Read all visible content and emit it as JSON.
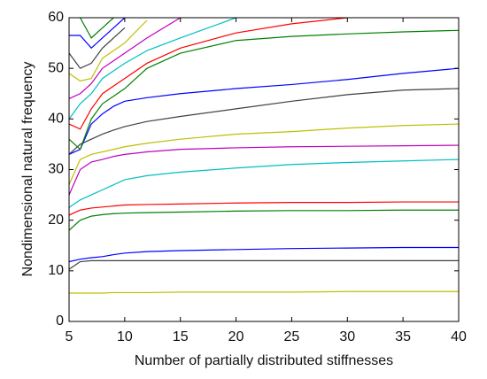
{
  "chart_data": {
    "type": "line",
    "xlabel": "Number of partially distributed stiffnesses",
    "ylabel": "Nondimensional natural frequency",
    "x": [
      5,
      6,
      7,
      8,
      9,
      10,
      12,
      15,
      20,
      25,
      30,
      35,
      40
    ],
    "xlim": [
      5,
      40
    ],
    "xticks": [
      5,
      10,
      15,
      20,
      25,
      30,
      35,
      40
    ],
    "ylim": [
      0,
      60
    ],
    "yticks": [
      0,
      10,
      20,
      30,
      40,
      50,
      60
    ],
    "grid": false,
    "series": [
      {
        "color": "#bfbf00",
        "values": [
          5.6,
          5.6,
          5.6,
          5.6,
          5.7,
          5.7,
          5.7,
          5.8,
          5.8,
          5.8,
          5.9,
          5.9,
          5.9
        ]
      },
      {
        "color": "#404040",
        "values": [
          10.3,
          11.8,
          12,
          12,
          12,
          12,
          12,
          12,
          12,
          12,
          12,
          12,
          12
        ]
      },
      {
        "color": "#0000ff",
        "values": [
          11.8,
          12.3,
          12.6,
          12.8,
          13.2,
          13.5,
          13.8,
          14.0,
          14.2,
          14.4,
          14.5,
          14.6,
          14.6
        ]
      },
      {
        "color": "#008000",
        "values": [
          18,
          20,
          20.8,
          21.1,
          21.3,
          21.4,
          21.5,
          21.6,
          21.8,
          21.9,
          21.9,
          22,
          22
        ]
      },
      {
        "color": "#ff0000",
        "values": [
          21,
          22,
          22.4,
          22.6,
          22.8,
          23,
          23.1,
          23.2,
          23.4,
          23.5,
          23.5,
          23.6,
          23.6
        ]
      },
      {
        "color": "#00bfbf",
        "values": [
          22.5,
          24,
          25,
          26,
          27,
          28,
          28.8,
          29.5,
          30.3,
          31,
          31.4,
          31.7,
          32
        ]
      },
      {
        "color": "#bf00bf",
        "values": [
          25,
          30,
          31.5,
          32,
          32.6,
          33,
          33.5,
          34,
          34.3,
          34.5,
          34.6,
          34.7,
          34.8
        ]
      },
      {
        "color": "#bfbf00",
        "values": [
          27,
          32,
          33,
          33.5,
          34,
          34.5,
          35.2,
          36,
          37,
          37.5,
          38.2,
          38.7,
          39
        ]
      },
      {
        "color": "#404040",
        "values": [
          33,
          35,
          36,
          37,
          37.8,
          38.5,
          39.5,
          40.5,
          42,
          43.5,
          44.8,
          45.7,
          46
        ]
      },
      {
        "color": "#0000ff",
        "values": [
          33,
          34,
          39,
          41,
          42.5,
          43.5,
          44.2,
          45,
          46,
          46.8,
          47.8,
          49,
          50
        ]
      },
      {
        "color": "#008000",
        "values": [
          36,
          34,
          40,
          43,
          44.5,
          46,
          50,
          53,
          55.5,
          56.3,
          56.8,
          57.2,
          57.5
        ]
      },
      {
        "color": "#ff0000",
        "values": [
          39,
          38,
          42,
          45,
          46.5,
          48,
          51,
          54,
          57,
          58.8,
          60,
          null,
          null
        ]
      },
      {
        "color": "#00bfbf",
        "values": [
          40,
          43,
          45,
          48,
          49.5,
          51,
          53.5,
          56,
          60,
          null,
          null,
          null,
          null
        ]
      },
      {
        "color": "#bf00bf",
        "values": [
          44,
          45,
          47,
          50,
          51.5,
          53,
          56,
          60,
          null,
          null,
          null,
          null,
          null
        ]
      },
      {
        "color": "#bfbf00",
        "values": [
          49,
          47.5,
          48,
          52,
          53.5,
          55,
          59.5,
          null,
          null,
          null,
          null,
          null,
          null
        ]
      },
      {
        "color": "#404040",
        "values": [
          53,
          50,
          51,
          54,
          56,
          58,
          null,
          null,
          null,
          null,
          null,
          null,
          null
        ]
      },
      {
        "color": "#0000ff",
        "values": [
          56.5,
          56.5,
          54,
          56,
          58,
          60,
          null,
          null,
          null,
          null,
          null,
          null,
          null
        ]
      },
      {
        "color": "#008000",
        "values": [
          null,
          60,
          56,
          58,
          60,
          null,
          null,
          null,
          null,
          null,
          null,
          null,
          null
        ]
      }
    ]
  }
}
